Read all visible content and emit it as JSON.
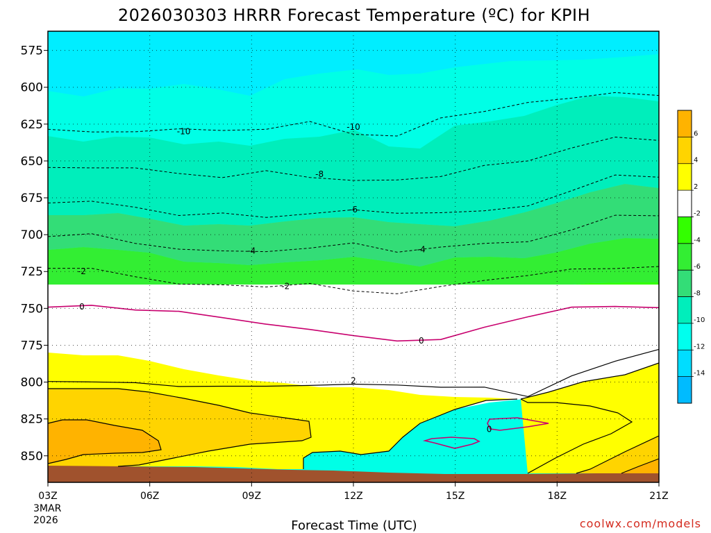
{
  "chart_data": {
    "type": "contour",
    "title": "2026030303 HRRR Forecast Temperature (ºC) for KPIH",
    "xlabel": "Forecast Time (UTC)",
    "x_ticks": [
      "03Z",
      "06Z",
      "09Z",
      "12Z",
      "15Z",
      "18Z",
      "21Z"
    ],
    "x_hours": [
      3,
      6,
      9,
      12,
      15,
      18,
      21
    ],
    "start_date": [
      "3MAR",
      "2026"
    ],
    "y_ticks": [
      575,
      600,
      625,
      650,
      675,
      700,
      725,
      750,
      775,
      800,
      825,
      850
    ],
    "ylim": [
      562,
      868
    ],
    "colorbar": {
      "labels": [
        6,
        4,
        2,
        -2,
        -4,
        -6,
        -8,
        -10,
        -12,
        -14
      ],
      "colors": [
        "#ffb300",
        "#ffd400",
        "#ffff00",
        "#ffffff",
        "#33ff00",
        "#33ee33",
        "#33dd77",
        "#00eebb",
        "#00ffee",
        "#00ddff",
        "#00bbff"
      ]
    },
    "fill_colors": {
      "2_to_4": "#ffd400",
      "4_to_6": "#ffb300",
      "0_to_2": "#ffff00",
      "-2_to_2": "#ffffff",
      "-4_to_-2": "#33ff00",
      "-6_to_-4": "#33ee33",
      "-8_to_-6": "#33dd77",
      "-10_to_-8": "#00eebb",
      "-12_to_-10": "#00ffe6",
      "-14_to_-12": "#00eeff",
      "below_-14": "#00bbff",
      "ground": "#a0522d"
    },
    "contours": [
      {
        "level": -10,
        "pressure": [
          628.5,
          630.3,
          630.2,
          628.2,
          629.3,
          628.5,
          623.2,
          631.9,
          633.1,
          620.8,
          616.4,
          610.3,
          607.4,
          603.6,
          605.6
        ]
      },
      {
        "level": -8,
        "pressure": [
          654.4,
          654.7,
          654.7,
          658.5,
          661.3,
          656.6,
          661.2,
          663.2,
          662.9,
          660.6,
          653.0,
          650.0,
          641.2,
          633.8,
          636.1
        ]
      },
      {
        "level": -6,
        "pressure": [
          678.5,
          677.3,
          681.4,
          687.0,
          685.3,
          688.3,
          685.8,
          683.1,
          685.5,
          685.1,
          683.8,
          680.5,
          670.2,
          659.5,
          661.0
        ]
      },
      {
        "level": -4,
        "pressure": [
          701.3,
          699.3,
          705.9,
          709.8,
          711.0,
          711.5,
          709.1,
          705.6,
          711.9,
          708.4,
          705.9,
          704.8,
          696.8,
          686.8,
          687.2
        ]
      },
      {
        "level": -2,
        "pressure": [
          722.8,
          722.8,
          728.5,
          733.5,
          734.0,
          735.5,
          733.1,
          738.2,
          740.1,
          735.1,
          731.0,
          727.7,
          723.3,
          723.0,
          721.6
        ]
      },
      {
        "level": 0,
        "pressure": [
          749.2,
          747.9,
          751.1,
          752.0,
          756.3,
          760.7,
          764.3,
          768.5,
          772.1,
          771.1,
          762.8,
          755.7,
          749.2,
          748.7,
          749.5
        ]
      },
      {
        "level": 2,
        "pressure": [
          799.6,
          799.9,
          800.4,
          803.0,
          802.8,
          802.8,
          802.3,
          801.4,
          802.0,
          803.5,
          803.4,
          809.8,
          795.8,
          785.8,
          777.8
        ]
      }
    ],
    "labels": [
      {
        "text": "-10",
        "hour": 7.0,
        "pressure": 630
      },
      {
        "text": "-10",
        "hour": 12.0,
        "pressure": 627
      },
      {
        "text": "-8",
        "hour": 11.0,
        "pressure": 659
      },
      {
        "text": "-6",
        "hour": 12.0,
        "pressure": 683
      },
      {
        "text": "-4",
        "hour": 9.0,
        "pressure": 711
      },
      {
        "text": "-4",
        "hour": 14.0,
        "pressure": 710
      },
      {
        "text": "-2",
        "hour": 4.0,
        "pressure": 725
      },
      {
        "text": "-2",
        "hour": 10.0,
        "pressure": 735
      },
      {
        "text": "0",
        "hour": 4.0,
        "pressure": 749
      },
      {
        "text": "0",
        "hour": 14.0,
        "pressure": 772
      },
      {
        "text": "2",
        "hour": 12.0,
        "pressure": 799
      },
      {
        "text": "0",
        "hour": 16.0,
        "pressure": 832
      }
    ]
  },
  "watermark": "coolwx.com/models"
}
